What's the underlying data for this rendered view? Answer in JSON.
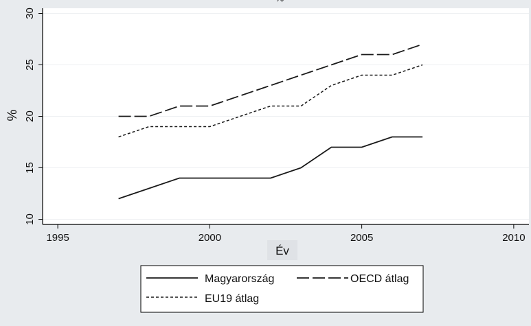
{
  "chart_data": {
    "type": "line",
    "title": "%",
    "xlabel": "Év",
    "ylabel": "%",
    "xlim": [
      1994.5,
      2010.5
    ],
    "ylim": [
      9.5,
      30.5
    ],
    "x_ticks": [
      1995,
      2000,
      2005,
      2010
    ],
    "y_ticks": [
      10,
      15,
      20,
      25,
      30
    ],
    "grid": "horizontal",
    "legend_position": "bottom",
    "colors": {
      "background": "#e8ebee",
      "plot_area": "#ffffff",
      "grid": "#eef0f2",
      "line": "#1a1a1a"
    },
    "x": [
      1997,
      1998,
      1999,
      2000,
      2001,
      2002,
      2003,
      2004,
      2005,
      2006,
      2007
    ],
    "series": [
      {
        "name": "Magyarország",
        "style": "solid",
        "values": [
          12,
          13,
          14,
          14,
          14,
          14,
          15,
          17,
          17,
          18,
          18
        ]
      },
      {
        "name": "OECD átlag",
        "style": "long-dash",
        "values": [
          20,
          20,
          21,
          21,
          22,
          23,
          24,
          25,
          26,
          26,
          27
        ]
      },
      {
        "name": "EU19 átlag",
        "style": "short-dash",
        "values": [
          18,
          19,
          19,
          19,
          20,
          21,
          21,
          23,
          24,
          24,
          25
        ]
      }
    ]
  }
}
